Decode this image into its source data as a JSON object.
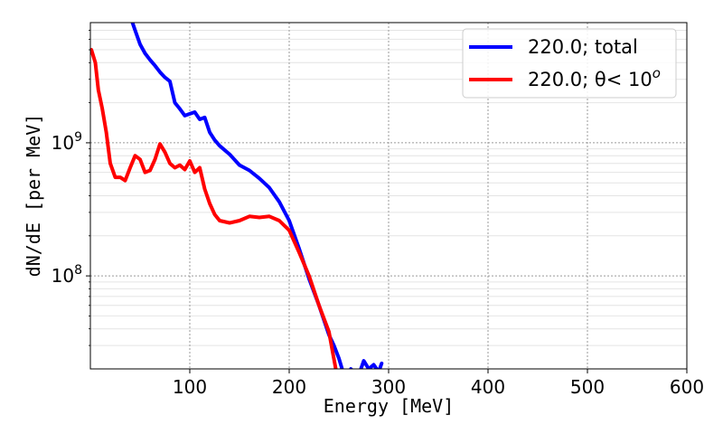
{
  "chart_data": {
    "type": "line",
    "xlabel": "Energy [MeV]",
    "ylabel": "dN/dE [per MeV]",
    "xlim": [
      0,
      600
    ],
    "ylim": [
      20000000.0,
      8000000000.0
    ],
    "yscale": "log",
    "grid": true,
    "legend_position": "top-right",
    "x_ticks": [
      100,
      200,
      300,
      400,
      500,
      600
    ],
    "x_tick_labels": [
      "100",
      "200",
      "300",
      "400",
      "500",
      "600"
    ],
    "y_ticks": [
      100000000,
      1000000000
    ],
    "y_tick_base": "10",
    "y_tick_exponents": [
      "8",
      "9"
    ],
    "series": [
      {
        "name": "220.0; total",
        "color": "#0000ff",
        "x": [
          40,
          45,
          50,
          55,
          60,
          65,
          70,
          75,
          80,
          85,
          90,
          95,
          100,
          105,
          110,
          115,
          120,
          125,
          130,
          140,
          150,
          160,
          170,
          180,
          190,
          200,
          210,
          220,
          230,
          240,
          245,
          250,
          255,
          260,
          262,
          265,
          270,
          275,
          280,
          285,
          290,
          293
        ],
        "y": [
          9000000000.0,
          7000000000.0,
          5500000000.0,
          4700000000.0,
          4200000000.0,
          3800000000.0,
          3400000000.0,
          3100000000.0,
          2900000000.0,
          2000000000.0,
          1800000000.0,
          1600000000.0,
          1650000000.0,
          1700000000.0,
          1500000000.0,
          1550000000.0,
          1200000000.0,
          1050000000.0,
          950000000.0,
          820000000.0,
          680000000.0,
          620000000.0,
          540000000.0,
          460000000.0,
          360000000.0,
          260000000.0,
          160000000.0,
          95000000.0,
          60000000.0,
          36000000.0,
          30000000.0,
          24000000.0,
          18000000.0,
          18000000.0,
          20000000.0,
          19000000.0,
          18000000.0,
          23000000.0,
          20000000.0,
          21500000.0,
          19000000.0,
          22000000.0
        ]
      },
      {
        "name": "220.0; θ< 10º",
        "legend_base": "220.0; θ< 10",
        "legend_superscript": "o",
        "color": "#ff0000",
        "x": [
          1,
          5,
          8,
          12,
          16,
          20,
          25,
          30,
          35,
          40,
          45,
          50,
          55,
          60,
          65,
          70,
          75,
          80,
          85,
          90,
          95,
          100,
          105,
          110,
          115,
          120,
          125,
          130,
          140,
          150,
          160,
          170,
          180,
          190,
          200,
          210,
          220,
          230,
          240,
          244,
          248
        ],
        "y": [
          5000000000.0,
          4000000000.0,
          2500000000.0,
          1800000000.0,
          1200000000.0,
          700000000.0,
          550000000.0,
          550000000.0,
          520000000.0,
          650000000.0,
          800000000.0,
          750000000.0,
          600000000.0,
          620000000.0,
          750000000.0,
          980000000.0,
          850000000.0,
          700000000.0,
          650000000.0,
          680000000.0,
          630000000.0,
          730000000.0,
          600000000.0,
          650000000.0,
          450000000.0,
          350000000.0,
          290000000.0,
          260000000.0,
          250000000.0,
          260000000.0,
          280000000.0,
          275000000.0,
          280000000.0,
          260000000.0,
          220000000.0,
          150000000.0,
          100000000.0,
          60000000.0,
          38000000.0,
          26000000.0,
          18000000.0
        ]
      }
    ]
  }
}
